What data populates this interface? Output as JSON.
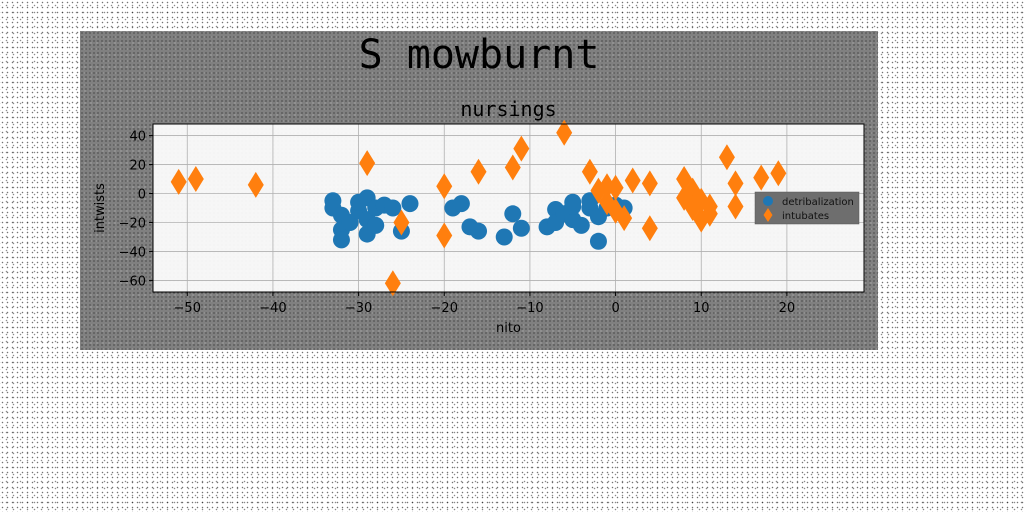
{
  "figure": {
    "suptitle": "S mowburnt"
  },
  "chart_data": {
    "type": "scatter",
    "title": "nursings",
    "xlabel": "nito",
    "ylabel": "intwists",
    "xlim": [
      -54,
      29
    ],
    "ylim": [
      -68,
      48
    ],
    "xticks": [
      -50,
      -40,
      -30,
      -20,
      -10,
      0,
      10,
      20
    ],
    "yticks": [
      -60,
      -40,
      -20,
      0,
      20,
      40
    ],
    "grid": true,
    "legend_position": "right",
    "series": [
      {
        "name": "detribalization",
        "marker": "circle",
        "color": "#1f77b4",
        "points": [
          [
            -33,
            -5
          ],
          [
            -33,
            -10
          ],
          [
            -32,
            -15
          ],
          [
            -32,
            -25
          ],
          [
            -32,
            -32
          ],
          [
            -31,
            -20
          ],
          [
            -30,
            -12
          ],
          [
            -30,
            -6
          ],
          [
            -29,
            -3
          ],
          [
            -29,
            -18
          ],
          [
            -29,
            -28
          ],
          [
            -28,
            -10
          ],
          [
            -28,
            -22
          ],
          [
            -27,
            -8
          ],
          [
            -26,
            -10
          ],
          [
            -25,
            -26
          ],
          [
            -24,
            -7
          ],
          [
            -19,
            -10
          ],
          [
            -18,
            -7
          ],
          [
            -17,
            -23
          ],
          [
            -16,
            -26
          ],
          [
            -13,
            -30
          ],
          [
            -12,
            -14
          ],
          [
            -11,
            -24
          ],
          [
            -8,
            -23
          ],
          [
            -7,
            -11
          ],
          [
            -7,
            -20
          ],
          [
            -6,
            -14
          ],
          [
            -5,
            -18
          ],
          [
            -5,
            -9
          ],
          [
            -5,
            -6
          ],
          [
            -4,
            -22
          ],
          [
            -3,
            -10
          ],
          [
            -3,
            -5
          ],
          [
            -2,
            -16
          ],
          [
            -2,
            -33
          ],
          [
            -1,
            -10
          ],
          [
            0,
            -8
          ],
          [
            1,
            -10
          ]
        ]
      },
      {
        "name": "intubates",
        "marker": "diamond",
        "color": "#ff7f0e",
        "points": [
          [
            -51,
            8
          ],
          [
            -49,
            10
          ],
          [
            -42,
            6
          ],
          [
            -29,
            21
          ],
          [
            -26,
            -62
          ],
          [
            -25,
            -20
          ],
          [
            -20,
            5
          ],
          [
            -20,
            -29
          ],
          [
            -16,
            15
          ],
          [
            -12,
            18
          ],
          [
            -11,
            31
          ],
          [
            -6,
            42
          ],
          [
            -3,
            15
          ],
          [
            -2,
            2
          ],
          [
            -1,
            5
          ],
          [
            -1,
            -6
          ],
          [
            0,
            4
          ],
          [
            0,
            -12
          ],
          [
            1,
            -17
          ],
          [
            2,
            9
          ],
          [
            4,
            7
          ],
          [
            4,
            -24
          ],
          [
            8,
            10
          ],
          [
            8,
            -3
          ],
          [
            9,
            2
          ],
          [
            9,
            -10
          ],
          [
            10,
            -5
          ],
          [
            10,
            -18
          ],
          [
            11,
            -9
          ],
          [
            11,
            -14
          ],
          [
            13,
            25
          ],
          [
            14,
            7
          ],
          [
            14,
            -9
          ],
          [
            17,
            11
          ],
          [
            19,
            14
          ]
        ]
      }
    ]
  }
}
